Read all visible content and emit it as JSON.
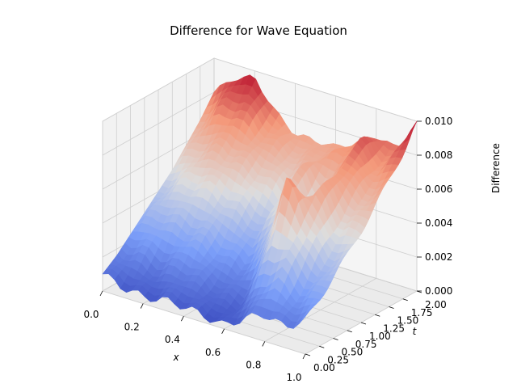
{
  "chart_data": {
    "type": "surface3d",
    "title": "Difference for Wave Equation",
    "xlabel": "x",
    "ylabel": "t",
    "zlabel": "Difference",
    "xlim": [
      0.0,
      1.0
    ],
    "ylim": [
      0.0,
      2.0
    ],
    "zlim": [
      0.0,
      0.01
    ],
    "xticks": [
      "0.0",
      "0.2",
      "0.4",
      "0.6",
      "0.8",
      "1.0"
    ],
    "yticks": [
      "0.00",
      "0.25",
      "0.50",
      "0.75",
      "1.00",
      "1.25",
      "1.50",
      "1.75",
      "2.00"
    ],
    "zticks": [
      "0.000",
      "0.002",
      "0.004",
      "0.006",
      "0.008",
      "0.010"
    ],
    "colormap": "coolwarm",
    "grid": true,
    "surface_samples": {
      "x": [
        0.0,
        0.1,
        0.2,
        0.3,
        0.4,
        0.5,
        0.6,
        0.7,
        0.8,
        0.9,
        1.0
      ],
      "t": [
        0.0,
        0.25,
        0.5,
        0.75,
        1.0,
        1.25,
        1.5,
        1.75,
        2.0
      ],
      "z": [
        [
          0.001,
          0.0016,
          0.0024,
          0.0032,
          0.004,
          0.0048,
          0.0058,
          0.0068,
          0.008
        ],
        [
          0.0006,
          0.0014,
          0.0026,
          0.0038,
          0.0046,
          0.0056,
          0.0066,
          0.008,
          0.0092
        ],
        [
          0.0004,
          0.001,
          0.0022,
          0.0036,
          0.005,
          0.006,
          0.007,
          0.0084,
          0.0096
        ],
        [
          0.0006,
          0.0014,
          0.0026,
          0.0034,
          0.0046,
          0.0058,
          0.0066,
          0.0074,
          0.008
        ],
        [
          0.0006,
          0.0012,
          0.0018,
          0.0028,
          0.004,
          0.0052,
          0.0062,
          0.0068,
          0.007
        ],
        [
          0.0004,
          0.0008,
          0.0014,
          0.0022,
          0.0034,
          0.0044,
          0.0056,
          0.0064,
          0.007
        ],
        [
          0.0002,
          0.0006,
          0.0016,
          0.0034,
          0.0054,
          0.0066,
          0.007,
          0.007,
          0.007
        ],
        [
          0.001,
          0.0022,
          0.0048,
          0.0082,
          0.006,
          0.004,
          0.006,
          0.0074,
          0.0076
        ],
        [
          0.0016,
          0.003,
          0.0046,
          0.006,
          0.007,
          0.0076,
          0.0082,
          0.0086,
          0.0084
        ],
        [
          0.0012,
          0.002,
          0.003,
          0.004,
          0.005,
          0.006,
          0.0068,
          0.0074,
          0.008
        ],
        [
          0.002,
          0.0028,
          0.0036,
          0.0044,
          0.0054,
          0.0064,
          0.0074,
          0.0086,
          0.01
        ]
      ]
    }
  }
}
